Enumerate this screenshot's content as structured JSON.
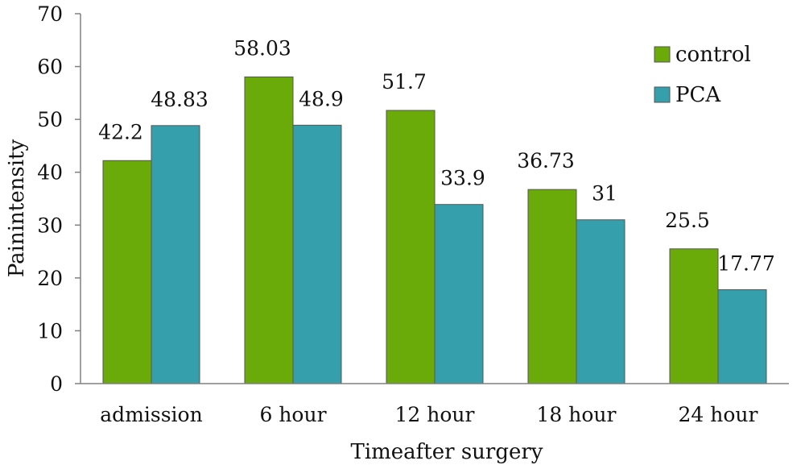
{
  "chart_data": {
    "type": "bar",
    "title": "",
    "xlabel": "Timeafter surgery",
    "ylabel": "Painintensity",
    "ylim": [
      0,
      70
    ],
    "yticks": [
      0,
      10,
      20,
      30,
      40,
      50,
      60,
      70
    ],
    "grid": false,
    "legend_position": "top-right",
    "categories": [
      "admission",
      "6 hour",
      "12 hour",
      "18 hour",
      "24 hour"
    ],
    "series": [
      {
        "name": "control",
        "color": "#6aab0a",
        "values": [
          42.2,
          58.03,
          51.7,
          36.73,
          25.5
        ],
        "labels": [
          "42.2",
          "58.03",
          "51.7",
          "36.73",
          "25.5"
        ]
      },
      {
        "name": "PCA",
        "color": "#35a0ab",
        "values": [
          48.83,
          48.9,
          33.9,
          31,
          17.77
        ],
        "labels": [
          "48.83",
          "48.9",
          "33.9",
          "31",
          "17.77"
        ]
      }
    ]
  }
}
